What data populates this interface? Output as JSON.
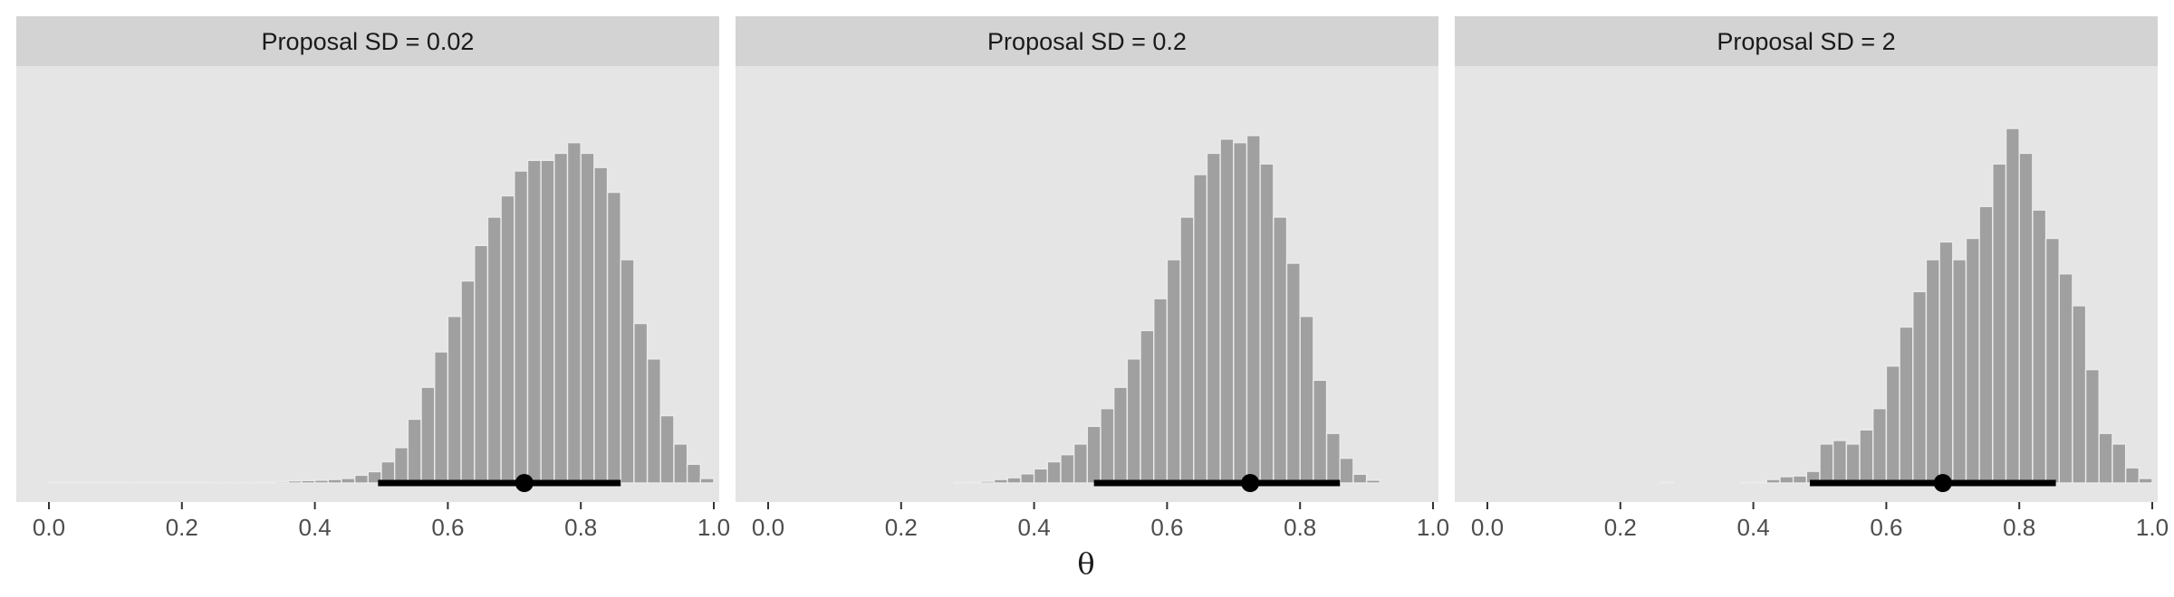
{
  "chart_data": {
    "type": "bar",
    "title": "",
    "xlabel": "θ",
    "ylabel": "",
    "xlim": [
      0,
      1
    ],
    "xticks": [
      "0.0",
      "0.2",
      "0.4",
      "0.6",
      "0.8",
      "1.0"
    ],
    "grid": false,
    "legend": "none",
    "colors": {
      "panel_bg": "#e5e5e5",
      "strip_bg": "#d3d3d3",
      "bar_fill": "#a0a0a0",
      "bar_stroke": "#ebebeb",
      "interval": "#000000"
    },
    "bin_width": 0.02,
    "bin_start": 0.0,
    "panels": [
      {
        "strip": "Proposal SD = 0.02",
        "counts": [
          0.3,
          0.3,
          0.3,
          0.3,
          0.3,
          0.3,
          0.2,
          0.3,
          0.3,
          0.3,
          0.3,
          0.3,
          0.2,
          0.2,
          0.2,
          0.2,
          0.3,
          0.4,
          0.6,
          0.7,
          0.8,
          1.0,
          1.3,
          2.2,
          3.2,
          6.0,
          10,
          18,
          27,
          37,
          47,
          57,
          67,
          75,
          81,
          88,
          91,
          91,
          93,
          96,
          93,
          89,
          82,
          63,
          45,
          35,
          19,
          11,
          5.3,
          1.3
        ],
        "interval": {
          "low": 0.495,
          "high": 0.86,
          "point": 0.715
        }
      },
      {
        "strip": "Proposal SD = 0.2",
        "counts": [
          0,
          0,
          0,
          0,
          0,
          0,
          0,
          0,
          0,
          0,
          0,
          0,
          0,
          0,
          0.2,
          0.3,
          0.5,
          1.0,
          1.5,
          2.6,
          4.0,
          6.0,
          8.0,
          11,
          16,
          21,
          27,
          35,
          43,
          52,
          63,
          75,
          87,
          93,
          97,
          96,
          98,
          90,
          75,
          62,
          47,
          29,
          14,
          7.0,
          2.5,
          0.8,
          0,
          0,
          0,
          0
        ],
        "interval": {
          "low": 0.49,
          "high": 0.86,
          "point": 0.725
        }
      },
      {
        "strip": "Proposal SD = 2",
        "counts": [
          0,
          0,
          0,
          0,
          0,
          0,
          0,
          0,
          0,
          0,
          0,
          0,
          0,
          0.3,
          0,
          0,
          0,
          0,
          0,
          0.2,
          0.3,
          1.0,
          1.8,
          2.0,
          3.3,
          11,
          12,
          11,
          15,
          21,
          33,
          44,
          54,
          63,
          68,
          63,
          69,
          78,
          90,
          100,
          93,
          77,
          69,
          59,
          50,
          32,
          14,
          11,
          4.3,
          1.3
        ],
        "interval": {
          "low": 0.485,
          "high": 0.855,
          "point": 0.685
        }
      }
    ]
  }
}
